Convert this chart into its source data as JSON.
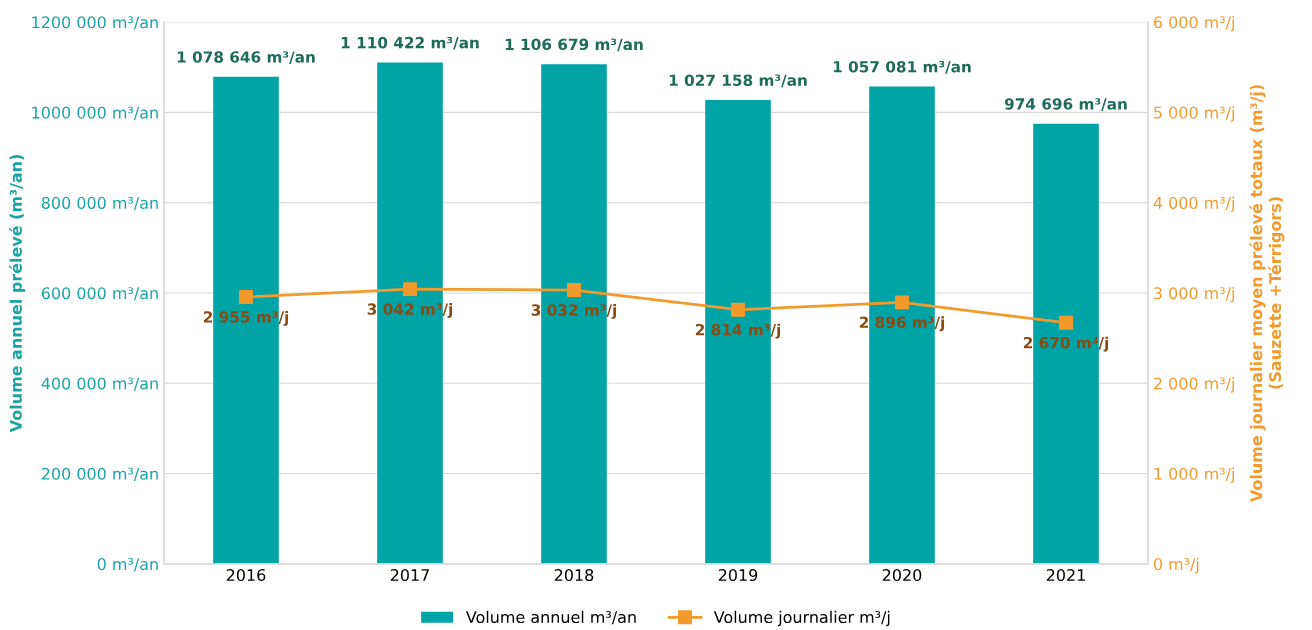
{
  "chart_data": {
    "type": "bar",
    "ylabel": "Volume annuel prélevé (m³/an)",
    "y2label": "Volume journalier moyen prélevé totaux (m³/j)\n(Sauzette +Térrigors)",
    "categories": [
      "2016",
      "2017",
      "2018",
      "2019",
      "2020",
      "2021"
    ],
    "series": [
      {
        "name": "Volume annuel m³/an",
        "color": "#00a3a6",
        "values": [
          1078646,
          1110422,
          1106679,
          1027158,
          1057081,
          974696
        ],
        "value_labels": [
          "1 078 646 m³/an",
          "1 110 422 m³/an",
          "1 106 679 m³/an",
          "1 027 158 m³/an",
          "1 057 081 m³/an",
          "974 696 m³/an"
        ]
      },
      {
        "name": "Volume journalier m³/j",
        "type": "line",
        "axis": "y2",
        "color": "#f39a2c",
        "marker": "square",
        "values": [
          2955,
          3042,
          3032,
          2814,
          2896,
          2670
        ],
        "value_labels": [
          "2 955 m³/j",
          "3 042 m³/j",
          "3 032 m³/j",
          "2 814 m³/j",
          "2 896 m³/j",
          "2 670 m³/j"
        ]
      }
    ],
    "ylim": [
      0,
      1200000
    ],
    "yticks": [
      {
        "value": 0,
        "label": "0 m³/an"
      },
      {
        "value": 200000,
        "label": "200 000 m³/an"
      },
      {
        "value": 400000,
        "label": "400 000 m³/an"
      },
      {
        "value": 600000,
        "label": "600 000 m³/an"
      },
      {
        "value": 800000,
        "label": "800 000 m³/an"
      },
      {
        "value": 1000000,
        "label": "1000 000 m³/an"
      },
      {
        "value": 1200000,
        "label": "1200 000 m³/an"
      }
    ],
    "y2lim": [
      0,
      6000
    ],
    "y2ticks": [
      {
        "value": 0,
        "label": "0 m³/j"
      },
      {
        "value": 1000,
        "label": "1 000 m³/j"
      },
      {
        "value": 2000,
        "label": "2 000 m³/j"
      },
      {
        "value": 3000,
        "label": "3 000 m³/j"
      },
      {
        "value": 4000,
        "label": "4 000 m³/j"
      },
      {
        "value": 5000,
        "label": "5 000 m³/j"
      },
      {
        "value": 6000,
        "label": "6 000 m³/j"
      }
    ],
    "grid": "y",
    "legend": "bottom"
  }
}
